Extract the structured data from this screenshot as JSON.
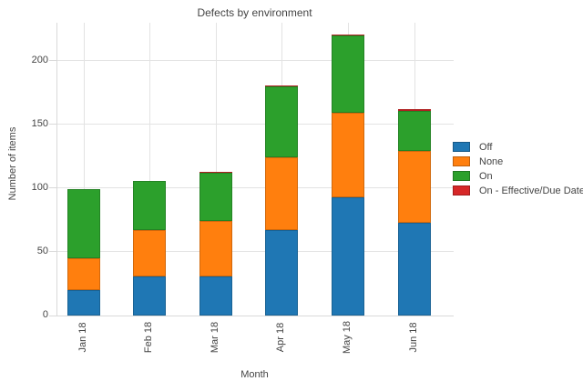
{
  "chart_data": {
    "type": "bar",
    "stacked": true,
    "title": "Defects by environment",
    "xlabel": "Month",
    "ylabel": "Number of items",
    "categories": [
      "Jan 18",
      "Feb 18",
      "Mar 18",
      "Apr 18",
      "May 18",
      "Jun 18"
    ],
    "series": [
      {
        "name": "Off",
        "color": "#1f77b4",
        "values": [
          20,
          31,
          31,
          67,
          93,
          73
        ]
      },
      {
        "name": "None",
        "color": "#ff7f0e",
        "values": [
          25,
          36,
          43,
          57,
          66,
          56
        ]
      },
      {
        "name": "On",
        "color": "#2ca02c",
        "values": [
          54,
          39,
          38,
          56,
          61,
          32
        ]
      },
      {
        "name": "On - Effective/Due Date",
        "color": "#d62728",
        "values": [
          0,
          0,
          1,
          1,
          1,
          1
        ]
      }
    ],
    "totals": [
      99,
      106,
      113,
      181,
      221,
      162
    ],
    "yticks": [
      0,
      50,
      100,
      150,
      200
    ],
    "ylim": [
      0,
      230
    ],
    "grid": true,
    "grid_color": "#e3e3e3",
    "axis_color": "#d9d9d9",
    "text_color": "#444444",
    "legend_position": "right"
  }
}
